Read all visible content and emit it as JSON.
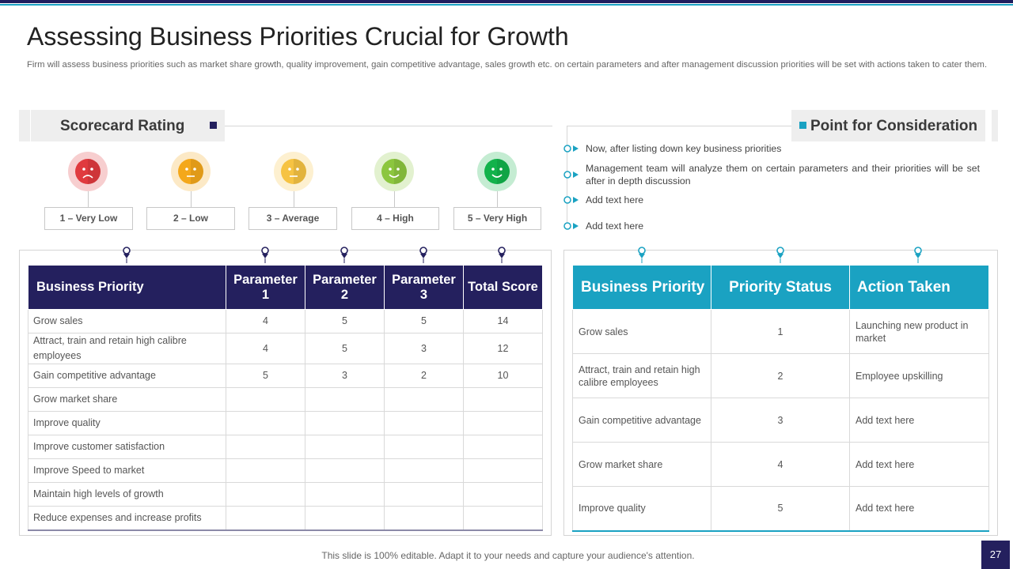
{
  "title": "Assessing Business Priorities Crucial for Growth",
  "subtitle": "Firm will assess business priorities such as market share growth, quality improvement, gain competitive advantage, sales growth etc. on certain parameters and after management discussion priorities will be set with actions taken to cater them.",
  "colors": {
    "navy": "#24205e",
    "teal": "#1aa2c2"
  },
  "scorecard": {
    "title": "Scorecard Rating",
    "ratings": [
      {
        "label": "1 – Very Low",
        "icon": "sad-face-icon",
        "color": "#e03a3e"
      },
      {
        "label": "2 – Low",
        "icon": "neutral-face-icon",
        "color": "#f4a81b"
      },
      {
        "label": "3 – Average",
        "icon": "neutral-face-icon",
        "color": "#f6c343"
      },
      {
        "label": "4 – High",
        "icon": "smile-face-icon",
        "color": "#8cc63f"
      },
      {
        "label": "5 – Very High",
        "icon": "smile-face-icon",
        "color": "#12b24b"
      }
    ]
  },
  "consideration": {
    "title": "Point for Consideration",
    "points": [
      "Now, after listing down key business priorities",
      "Management team will analyze them on certain parameters and their priorities will be set after in depth discussion",
      "Add text here",
      "Add text here"
    ]
  },
  "score_table": {
    "headers": [
      "Business Priority",
      "Parameter 1",
      "Parameter 2",
      "Parameter 3",
      "Total Score"
    ],
    "rows": [
      [
        "Grow sales",
        "4",
        "5",
        "5",
        "14"
      ],
      [
        "Attract, train and retain high calibre employees",
        "4",
        "5",
        "3",
        "12"
      ],
      [
        "Gain competitive advantage",
        "5",
        "3",
        "2",
        "10"
      ],
      [
        "Grow market share",
        "",
        "",
        "",
        ""
      ],
      [
        "Improve  quality",
        "",
        "",
        "",
        ""
      ],
      [
        "Improve  customer satisfaction",
        "",
        "",
        "",
        ""
      ],
      [
        "Improve  Speed to market",
        "",
        "",
        "",
        ""
      ],
      [
        "Maintain high levels  of growth",
        "",
        "",
        "",
        ""
      ],
      [
        "Reduce expenses and increase profits",
        "",
        "",
        "",
        ""
      ]
    ]
  },
  "status_table": {
    "headers": [
      "Business Priority",
      "Priority Status",
      "Action Taken"
    ],
    "rows": [
      [
        "Grow sales",
        "1",
        "Launching new product in market"
      ],
      [
        "Attract, train and retain high calibre employees",
        "2",
        "Employee upskilling"
      ],
      [
        "Gain competitive advantage",
        "3",
        "Add text here"
      ],
      [
        "Grow market share",
        "4",
        "Add text here"
      ],
      [
        "Improve  quality",
        "5",
        "Add text here"
      ]
    ]
  },
  "footer": "This slide is 100% editable. Adapt it to your needs and capture your audience's attention.",
  "page_number": "27"
}
